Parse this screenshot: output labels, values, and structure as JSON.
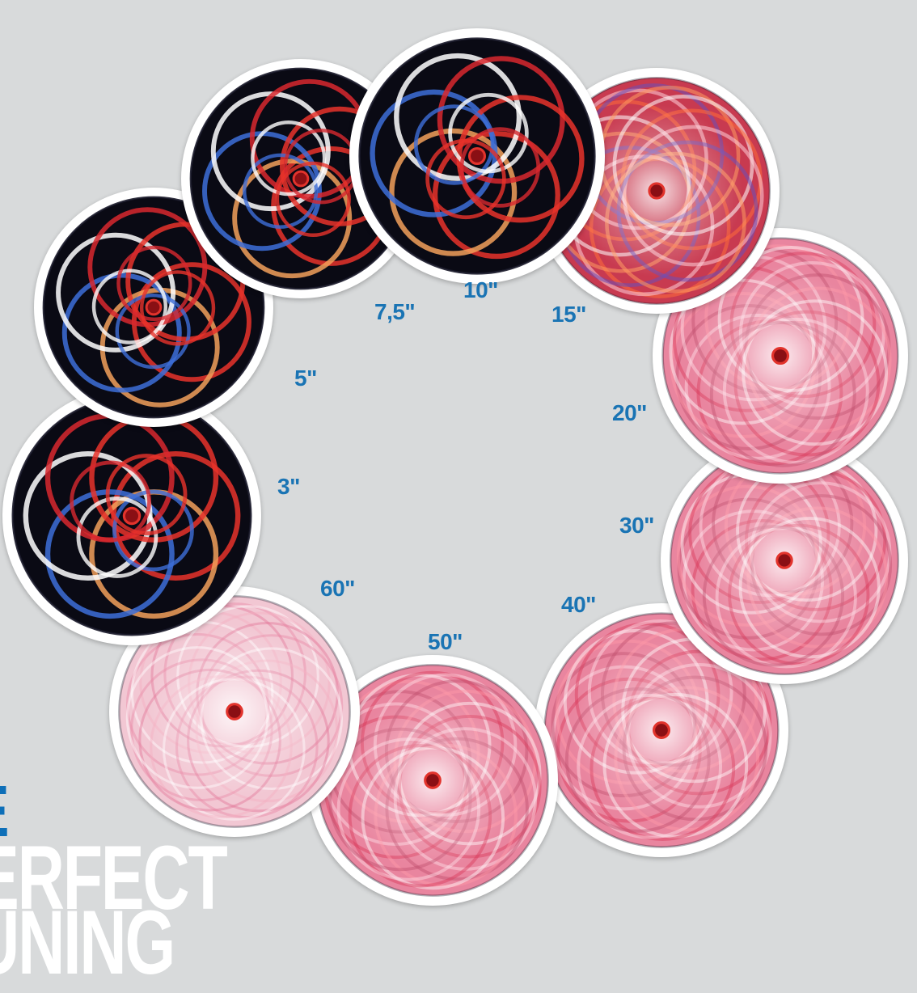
{
  "colors": {
    "background": "#d8dadb",
    "label": "#1a74b4",
    "title_blue": "#0e6fb8",
    "title_white": "#ffffff"
  },
  "exposures": [
    {
      "label": "3\"",
      "style": "dark"
    },
    {
      "label": "5\"",
      "style": "dark"
    },
    {
      "label": "7,5\"",
      "style": "dark"
    },
    {
      "label": "10\"",
      "style": "dark"
    },
    {
      "label": "15\"",
      "style": "warm"
    },
    {
      "label": "20\"",
      "style": "pink"
    },
    {
      "label": "30\"",
      "style": "pink"
    },
    {
      "label": "40\"",
      "style": "pink"
    },
    {
      "label": "50\"",
      "style": "pink"
    },
    {
      "label": "60\"",
      "style": "pale"
    }
  ],
  "title": {
    "line1": "E",
    "line2": "ERFECT",
    "line3": "UNING"
  }
}
